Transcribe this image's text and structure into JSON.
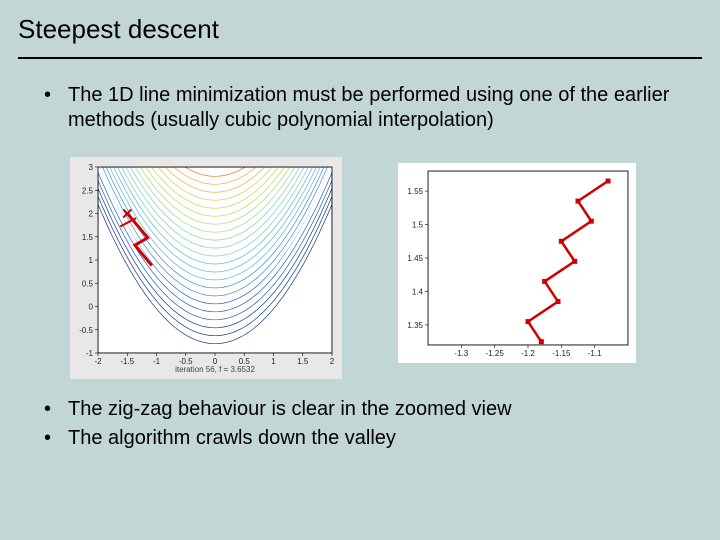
{
  "slide": {
    "title": "Steepest descent",
    "bullet1": "The 1D line minimization must be performed using one of the earlier methods (usually cubic polynomial interpolation)",
    "bullet2": "The zig-zag behaviour is clear in the zoomed view",
    "bullet3": "The algorithm crawls down the valley",
    "background_color": "#c3d6d6",
    "title_fontsize": 26,
    "bullet_fontsize": 20
  },
  "chart_left": {
    "type": "contour",
    "xlim": [
      -2,
      2
    ],
    "ylim": [
      -1,
      3
    ],
    "xticks": [
      -2,
      -1.5,
      -1,
      -0.5,
      0,
      0.5,
      1,
      1.5,
      2
    ],
    "yticks": [
      -1,
      -0.5,
      0,
      0.5,
      1,
      1.5,
      2,
      2.5,
      3
    ],
    "caption": "iteration 56, f = 3.6532",
    "background_color": "#ffffff",
    "panel_color": "#e8e8e8",
    "contour_colors": [
      "#103a8a",
      "#2060c0",
      "#3c8ed0",
      "#58b8d0",
      "#78d0b0",
      "#a0d880",
      "#d0d050",
      "#e8b040",
      "#f07020"
    ],
    "descent_color": "#d00000",
    "descent_linewidth": 3,
    "descent_start": [
      -1.5,
      2.0
    ],
    "descent_path": [
      [
        -1.5,
        2.0
      ],
      [
        -1.15,
        1.48
      ],
      [
        -1.37,
        1.32
      ],
      [
        -1.08,
        0.88
      ]
    ],
    "marker_size": 4,
    "axis_color": "#000000",
    "tick_fontsize": 8
  },
  "chart_right": {
    "type": "line",
    "xlim": [
      -1.35,
      -1.05
    ],
    "ylim": [
      1.32,
      1.58
    ],
    "xticks": [
      -1.3,
      -1.25,
      -1.2,
      -1.15,
      -1.1
    ],
    "yticks": [
      1.35,
      1.4,
      1.45,
      1.5,
      1.55
    ],
    "background_color": "#ffffff",
    "grid_on": false,
    "contour_line_color": "#1030a0",
    "contour_line_width": 0.8,
    "contour_count": 13,
    "zigzag_color": "#d00000",
    "zigzag_linewidth": 2.5,
    "zigzag_marker_color": "#d00000",
    "zigzag_marker_size": 5,
    "zigzag_points": [
      [
        -1.08,
        1.565
      ],
      [
        -1.125,
        1.535
      ],
      [
        -1.105,
        1.505
      ],
      [
        -1.15,
        1.475
      ],
      [
        -1.13,
        1.445
      ],
      [
        -1.175,
        1.415
      ],
      [
        -1.155,
        1.385
      ],
      [
        -1.2,
        1.355
      ],
      [
        -1.18,
        1.325
      ]
    ],
    "axis_color": "#000000",
    "tick_fontsize": 8
  }
}
